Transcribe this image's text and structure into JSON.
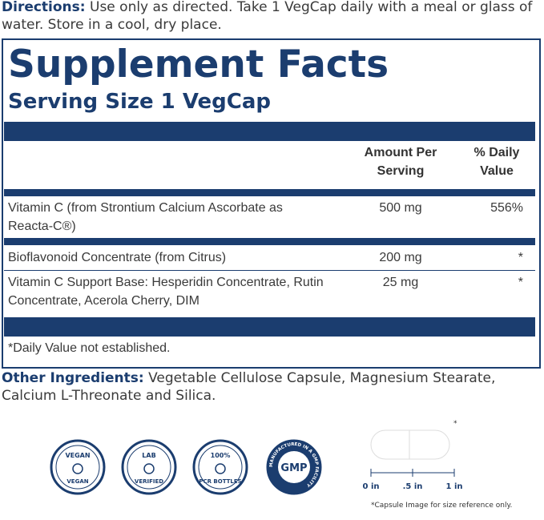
{
  "directions": {
    "label": "Directions:",
    "text": "Use only as directed. Take 1 VegCap daily with a meal or glass of water. Store in a cool, dry place."
  },
  "facts": {
    "title": "Supplement Facts",
    "serving_size": "Serving Size 1 VegCap",
    "header": {
      "amount": "Amount Per Serving",
      "daily_value": "% Daily Value"
    },
    "rows": [
      [
        "Vitamin C (from Strontium Calcium Ascorbate as Reacta-C®)",
        "500 mg",
        "556%"
      ],
      [
        "Bioflavonoid Concentrate (from Citrus)",
        "200 mg",
        "*"
      ],
      [
        "Vitamin C Support Base:  Hesperidin Concentrate, Rutin Concentrate, Acerola Cherry, DIM",
        "25 mg",
        "*"
      ]
    ],
    "footnote": "*Daily Value not established."
  },
  "other_ingredients": {
    "label": "Other Ingredients:",
    "text": "Vegetable Cellulose Capsule, Magnesium Stearate, Calcium L-Threonate and Silica."
  },
  "badges": [
    {
      "top": "VEGAN",
      "bottom": "VEGAN"
    },
    {
      "top": "LAB",
      "bottom": "VERIFIED"
    },
    {
      "top": "100%",
      "bottom": "PCR BOTTLES"
    },
    {
      "center": "GMP",
      "ring": "MANUFACTURED IN A GMP FACILITY"
    }
  ],
  "capsule": {
    "marker": "*",
    "scale": [
      "0 in",
      ".5 in",
      "1 in"
    ],
    "note": "*Capsule Image for size reference only."
  }
}
